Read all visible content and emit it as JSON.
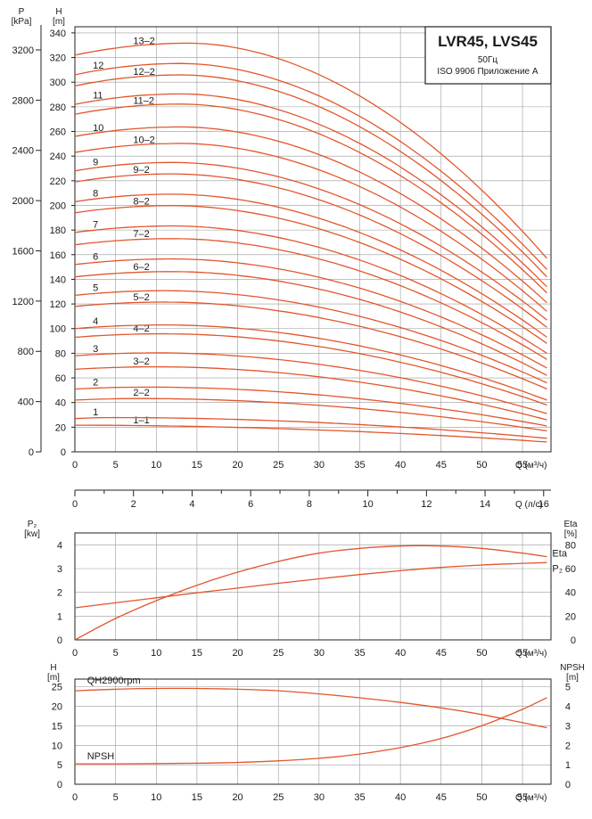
{
  "title_box": {
    "title": "LVR45, LVS45",
    "frequency": "50Гц",
    "standard": "ISO 9906 Приложение A"
  },
  "colors": {
    "curve": "#e2562c",
    "grid": "#9a9a9a",
    "frame": "#222222"
  },
  "chart_data": [
    {
      "type": "line",
      "id": "qh",
      "ylabel_left": "P\n[kPa]",
      "ylabel_right": "H\n[m]",
      "xlabel": "Q (м³/ч)",
      "xlabel_secondary": "Q (л/с)",
      "xlim": [
        0,
        58.5
      ],
      "ylim": [
        0,
        345
      ],
      "x_ticks": [
        0,
        5,
        10,
        15,
        20,
        25,
        30,
        35,
        40,
        45,
        50,
        55
      ],
      "y_ticks_H": [
        0,
        20,
        40,
        60,
        80,
        100,
        120,
        140,
        160,
        180,
        200,
        220,
        240,
        260,
        280,
        300,
        320,
        340
      ],
      "y_ticks_P": [
        0,
        400,
        800,
        1200,
        1600,
        2000,
        2400,
        2800,
        3200
      ],
      "x_ticks_secondary": [
        0,
        2,
        4,
        6,
        8,
        10,
        12,
        14,
        16
      ],
      "grid": true,
      "series": [
        {
          "name": "1-1",
          "shut_off": 21,
          "peak_q": 0,
          "end_q": 58,
          "end": 8
        },
        {
          "name": "1",
          "shut_off": 27,
          "peak_q": 5,
          "end_q": 58,
          "end": 11
        },
        {
          "name": "2-2",
          "shut_off": 42,
          "peak_q": 8,
          "end_q": 58,
          "end": 17
        },
        {
          "name": "2",
          "shut_off": 51,
          "peak_q": 9,
          "end_q": 58,
          "end": 21
        },
        {
          "name": "3-2",
          "shut_off": 67,
          "peak_q": 10,
          "end_q": 58,
          "end": 26
        },
        {
          "name": "3",
          "shut_off": 78,
          "peak_q": 10,
          "end_q": 58,
          "end": 31
        },
        {
          "name": "4-2",
          "shut_off": 93,
          "peak_q": 11,
          "end_q": 58,
          "end": 38
        },
        {
          "name": "4",
          "shut_off": 100,
          "peak_q": 11,
          "end_q": 58,
          "end": 42
        },
        {
          "name": "5-2",
          "shut_off": 118,
          "peak_q": 11,
          "end_q": 58,
          "end": 51
        },
        {
          "name": "5",
          "shut_off": 127,
          "peak_q": 11,
          "end_q": 58,
          "end": 56
        },
        {
          "name": "6-2",
          "shut_off": 142,
          "peak_q": 12,
          "end_q": 58,
          "end": 62
        },
        {
          "name": "6",
          "shut_off": 152,
          "peak_q": 12,
          "end_q": 58,
          "end": 68
        },
        {
          "name": "7-2",
          "shut_off": 168,
          "peak_q": 12,
          "end_q": 58,
          "end": 75
        },
        {
          "name": "7",
          "shut_off": 178,
          "peak_q": 12,
          "end_q": 58,
          "end": 80
        },
        {
          "name": "8-2",
          "shut_off": 194,
          "peak_q": 12,
          "end_q": 58,
          "end": 88
        },
        {
          "name": "8",
          "shut_off": 203,
          "peak_q": 12,
          "end_q": 58,
          "end": 93
        },
        {
          "name": "9-2",
          "shut_off": 219,
          "peak_q": 12,
          "end_q": 58,
          "end": 101
        },
        {
          "name": "9",
          "shut_off": 228,
          "peak_q": 12,
          "end_q": 58,
          "end": 107
        },
        {
          "name": "10-2",
          "shut_off": 243,
          "peak_q": 13,
          "end_q": 58,
          "end": 114
        },
        {
          "name": "10",
          "shut_off": 256,
          "peak_q": 13,
          "end_q": 58,
          "end": 121
        },
        {
          "name": "11-2",
          "shut_off": 274,
          "peak_q": 13,
          "end_q": 58,
          "end": 129
        },
        {
          "name": "11",
          "shut_off": 282,
          "peak_q": 13,
          "end_q": 58,
          "end": 134
        },
        {
          "name": "12-2",
          "shut_off": 297,
          "peak_q": 13,
          "end_q": 58,
          "end": 142
        },
        {
          "name": "12",
          "shut_off": 306,
          "peak_q": 13,
          "end_q": 58,
          "end": 148
        },
        {
          "name": "13-2",
          "shut_off": 322,
          "peak_q": 14,
          "end_q": 58,
          "end": 157
        }
      ]
    },
    {
      "type": "line",
      "id": "power",
      "ylabel_left": "P₂\n[kw]",
      "ylabel_right": "Eta\n[%]",
      "xlabel": "Q (м³/ч)",
      "xlim": [
        0,
        58.5
      ],
      "ylim_left": [
        0,
        4.5
      ],
      "ylim_right": [
        0,
        90
      ],
      "x_ticks": [
        0,
        5,
        10,
        15,
        20,
        25,
        30,
        35,
        40,
        45,
        50,
        55
      ],
      "y_ticks_left": [
        0,
        1,
        2,
        3,
        4
      ],
      "y_ticks_right": [
        0,
        20,
        40,
        60,
        80
      ],
      "grid": true,
      "series": [
        {
          "name": "Eta",
          "axis": "right",
          "x": [
            0,
            5,
            10,
            15,
            20,
            25,
            30,
            35,
            40,
            45,
            50,
            55,
            58
          ],
          "y": [
            0,
            18,
            33,
            46,
            57,
            66,
            73,
            77,
            79,
            79,
            77,
            73,
            70
          ]
        },
        {
          "name": "P₂",
          "axis": "left",
          "x": [
            0,
            5,
            10,
            15,
            20,
            25,
            30,
            35,
            40,
            45,
            50,
            55,
            58
          ],
          "y": [
            1.35,
            1.56,
            1.77,
            1.98,
            2.18,
            2.38,
            2.57,
            2.75,
            2.91,
            3.05,
            3.15,
            3.22,
            3.25
          ]
        }
      ]
    },
    {
      "type": "line",
      "id": "npsh",
      "ylabel_left": "H\n[m]",
      "ylabel_right": "NPSH\n[m]",
      "xlabel": "Q (м³/ч)",
      "xlim": [
        0,
        58.5
      ],
      "ylim_left": [
        0,
        27
      ],
      "ylim_right": [
        0,
        5.4
      ],
      "x_ticks": [
        0,
        5,
        10,
        15,
        20,
        25,
        30,
        35,
        40,
        45,
        50,
        55
      ],
      "y_ticks_left": [
        0,
        5,
        10,
        15,
        20,
        25
      ],
      "y_ticks_right": [
        0,
        1,
        2,
        3,
        4,
        5
      ],
      "grid": true,
      "series": [
        {
          "name": "QH2900rpm",
          "axis": "left",
          "x": [
            0,
            5,
            10,
            15,
            20,
            25,
            30,
            35,
            40,
            45,
            50,
            55,
            58
          ],
          "y": [
            24.0,
            24.4,
            24.6,
            24.6,
            24.4,
            24.0,
            23.2,
            22.2,
            21.0,
            19.6,
            17.9,
            15.8,
            14.5
          ]
        },
        {
          "name": "NPSH",
          "axis": "right",
          "x": [
            0,
            5,
            10,
            15,
            20,
            25,
            30,
            35,
            40,
            45,
            50,
            55,
            58
          ],
          "y": [
            1.05,
            1.05,
            1.06,
            1.08,
            1.12,
            1.2,
            1.33,
            1.55,
            1.88,
            2.35,
            3.0,
            3.85,
            4.45
          ]
        }
      ]
    }
  ]
}
